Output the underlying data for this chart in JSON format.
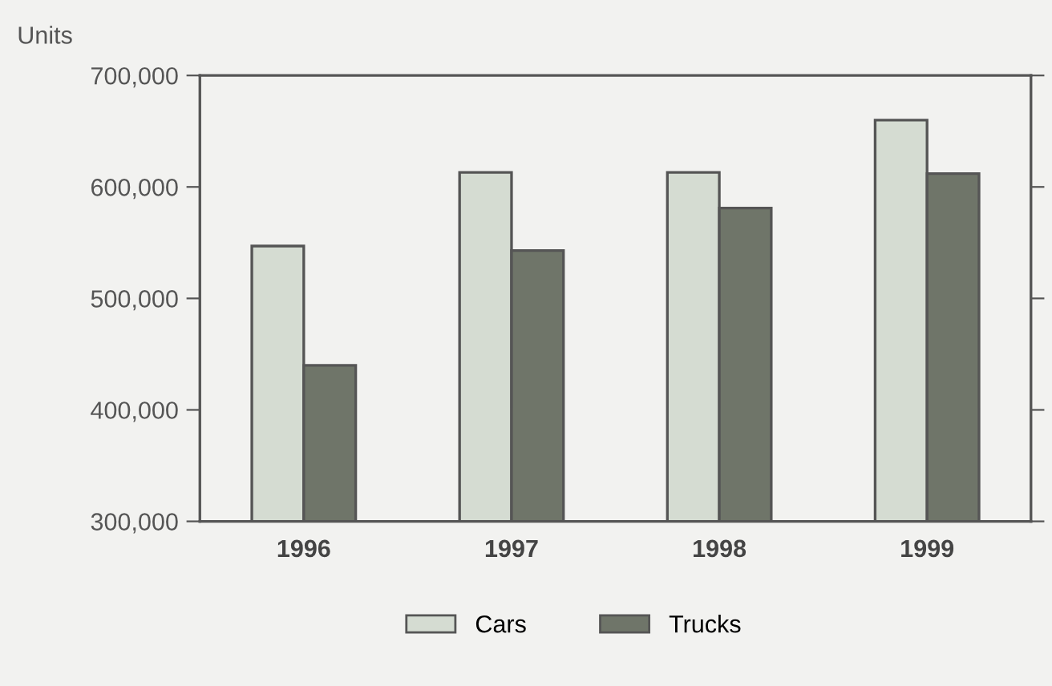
{
  "chart_data": {
    "type": "bar",
    "ylabel": "Units",
    "categories": [
      "1996",
      "1997",
      "1998",
      "1999"
    ],
    "series": [
      {
        "name": "Cars",
        "color": "#d5dcd2",
        "values": [
          547000,
          613000,
          613000,
          660000
        ]
      },
      {
        "name": "Trucks",
        "color": "#6f7569",
        "values": [
          440000,
          543000,
          581000,
          612000
        ]
      }
    ],
    "ylim": [
      300000,
      700000
    ],
    "yticks": [
      {
        "value": 300000,
        "label": "300,000"
      },
      {
        "value": 400000,
        "label": "400,000"
      },
      {
        "value": 500000,
        "label": "500,000"
      },
      {
        "value": 600000,
        "label": "600,000"
      },
      {
        "value": 700000,
        "label": "700,000"
      }
    ],
    "grid": false,
    "legend": "bottom"
  }
}
